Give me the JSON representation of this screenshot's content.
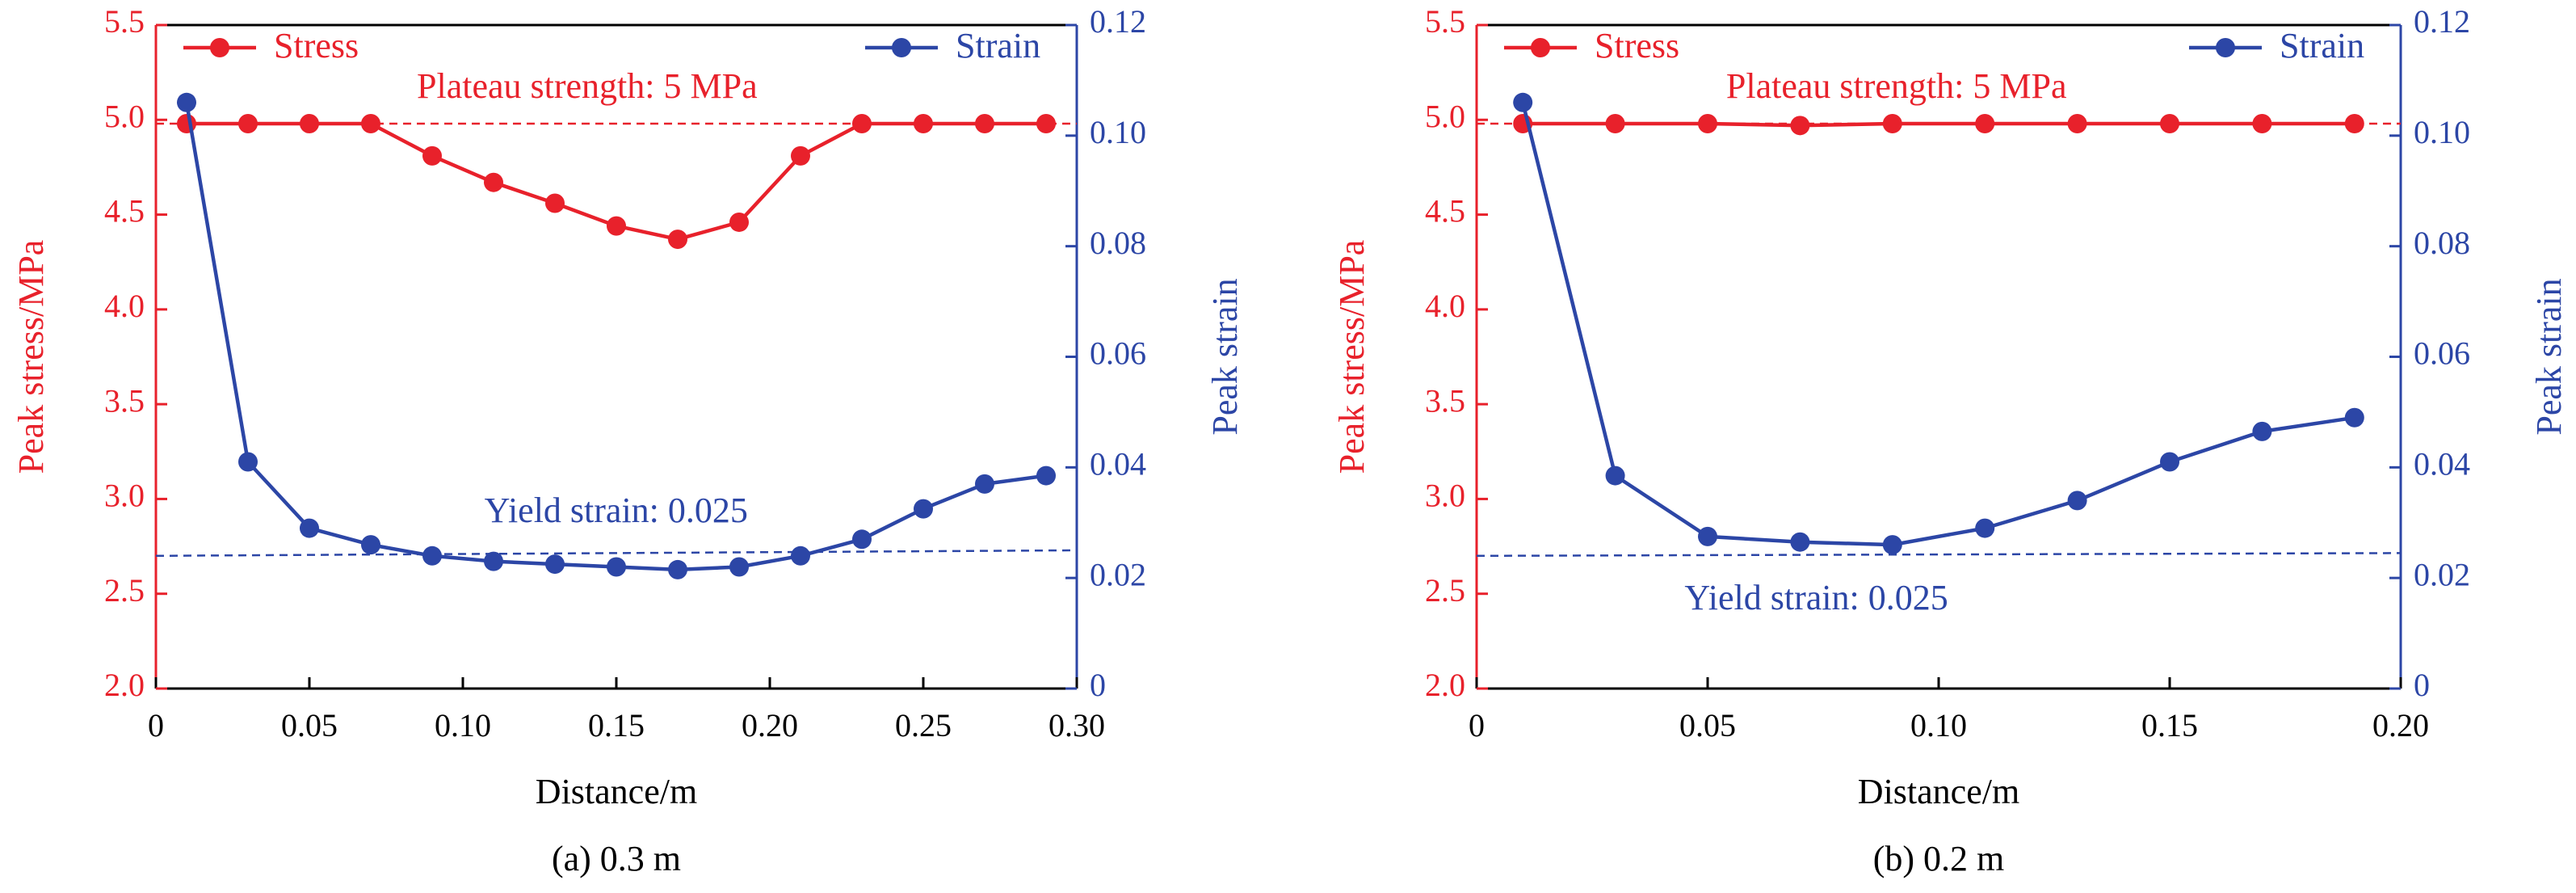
{
  "colors": {
    "stress": "#e8212b",
    "strain": "#2c46a6",
    "axis": "#000000",
    "background": "#ffffff"
  },
  "marker_icon": "filled-circle",
  "chart_data": [
    {
      "type": "line",
      "caption": "(a) 0.3 m",
      "xlabel": "Distance/m",
      "ylabel": "Peak stress/MPa",
      "y2label": "Peak strain",
      "xlim": [
        0,
        0.3
      ],
      "ylim": [
        2.0,
        5.5
      ],
      "y2lim": [
        0,
        0.12
      ],
      "xticks": [
        "0",
        "0.05",
        "0.10",
        "0.15",
        "0.20",
        "0.25",
        "0.30"
      ],
      "yticks": [
        "2.0",
        "2.5",
        "3.0",
        "3.5",
        "4.0",
        "4.5",
        "5.0",
        "5.5"
      ],
      "y2ticks": [
        "0",
        "0.02",
        "0.04",
        "0.06",
        "0.08",
        "0.10",
        "0.12"
      ],
      "grid": false,
      "legend": [
        "top-left",
        "top-right"
      ],
      "series": [
        {
          "name": "Stress",
          "axis": "left",
          "x": [
            0.01,
            0.03,
            0.05,
            0.07,
            0.09,
            0.11,
            0.13,
            0.15,
            0.17,
            0.19,
            0.21,
            0.23,
            0.25,
            0.27,
            0.29
          ],
          "values": [
            4.98,
            4.98,
            4.98,
            4.98,
            4.81,
            4.67,
            4.56,
            4.44,
            4.37,
            4.46,
            4.81,
            4.98,
            4.98,
            4.98,
            4.98
          ]
        },
        {
          "name": "Strain",
          "axis": "right",
          "x": [
            0.01,
            0.03,
            0.05,
            0.07,
            0.09,
            0.11,
            0.13,
            0.15,
            0.17,
            0.19,
            0.21,
            0.23,
            0.25,
            0.27,
            0.29
          ],
          "values": [
            0.106,
            0.041,
            0.029,
            0.026,
            0.024,
            0.023,
            0.0225,
            0.022,
            0.0215,
            0.022,
            0.024,
            0.027,
            0.0325,
            0.037,
            0.0385
          ]
        }
      ],
      "reference_lines": [
        {
          "label": "Plateau strength: 5 MPa",
          "axis": "left",
          "value": 4.98,
          "label_at_x": 0.085
        },
        {
          "label": "Yield strain: 0.025",
          "axis": "right",
          "value": 0.024,
          "value_end": 0.025,
          "label_at_x": 0.107
        }
      ]
    },
    {
      "type": "line",
      "caption": "(b) 0.2 m",
      "xlabel": "Distance/m",
      "ylabel": "Peak stress/MPa",
      "y2label": "Peak strain",
      "xlim": [
        0,
        0.2
      ],
      "ylim": [
        2.0,
        5.5
      ],
      "y2lim": [
        0,
        0.12
      ],
      "xticks": [
        "0",
        "0.05",
        "0.10",
        "0.15",
        "0.20"
      ],
      "yticks": [
        "2.0",
        "2.5",
        "3.0",
        "3.5",
        "4.0",
        "4.5",
        "5.0",
        "5.5"
      ],
      "y2ticks": [
        "0",
        "0.02",
        "0.04",
        "0.06",
        "0.08",
        "0.10",
        "0.12"
      ],
      "grid": false,
      "legend": [
        "top-left",
        "top-right"
      ],
      "series": [
        {
          "name": "Stress",
          "axis": "left",
          "x": [
            0.01,
            0.03,
            0.05,
            0.07,
            0.09,
            0.11,
            0.13,
            0.15,
            0.17,
            0.19
          ],
          "values": [
            4.98,
            4.98,
            4.98,
            4.97,
            4.98,
            4.98,
            4.98,
            4.98,
            4.98,
            4.98
          ]
        },
        {
          "name": "Strain",
          "axis": "right",
          "x": [
            0.01,
            0.03,
            0.05,
            0.07,
            0.09,
            0.11,
            0.13,
            0.15,
            0.17,
            0.19
          ],
          "values": [
            0.106,
            0.0385,
            0.0275,
            0.0265,
            0.026,
            0.029,
            0.034,
            0.041,
            0.0465,
            0.049
          ]
        }
      ],
      "reference_lines": [
        {
          "label": "Plateau strength:  5 MPa",
          "axis": "left",
          "value": 4.98,
          "label_at_x": 0.054
        },
        {
          "label": "Yield strain: 0.025",
          "axis": "right",
          "value": 0.024,
          "value_end": 0.0245,
          "label_at_x": 0.045
        }
      ]
    }
  ]
}
